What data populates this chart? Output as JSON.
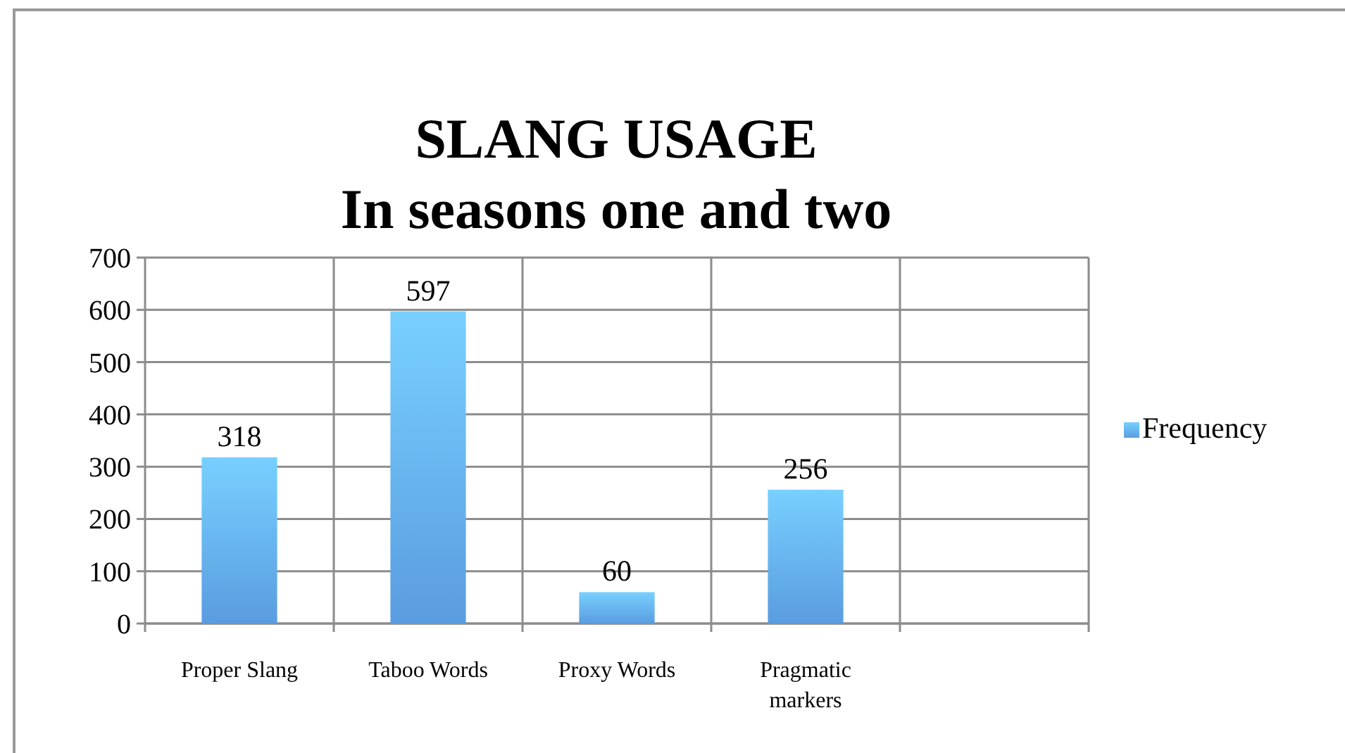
{
  "chart_data": {
    "type": "bar",
    "title": "SLANG USAGE",
    "subtitle": "In seasons one and two",
    "categories": [
      "Proper Slang",
      "Taboo Words",
      "Proxy Words",
      "Pragmatic markers",
      null
    ],
    "series": [
      {
        "name": "Frequency",
        "color": "#5a9ce0",
        "values": [
          318,
          597,
          60,
          256,
          null
        ]
      }
    ],
    "ylim": [
      0,
      700
    ],
    "yticks": [
      0,
      100,
      200,
      300,
      400,
      500,
      600,
      700
    ],
    "grid": true,
    "data_labels": true,
    "legend": "right"
  }
}
